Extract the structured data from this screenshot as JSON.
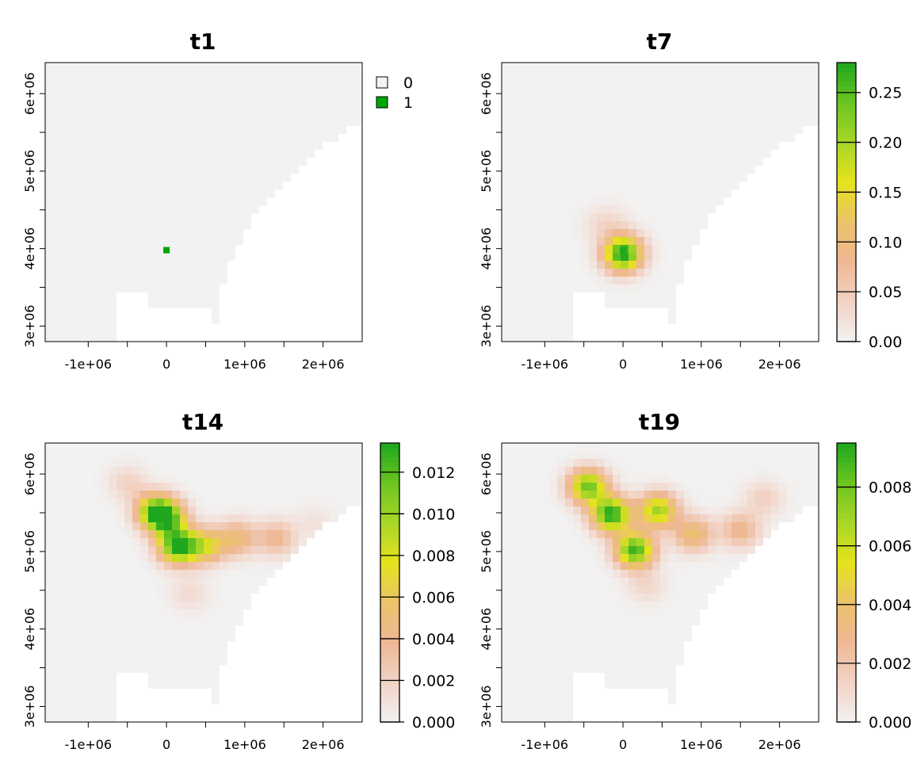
{
  "palette": {
    "background_cell": "#f2f2f2",
    "frame": "#000000",
    "ramp": [
      "#f2f2f2",
      "#f2d3c6",
      "#efb894",
      "#ebc26c",
      "#e6e31c",
      "#a8d627",
      "#6cc521",
      "#1ea71e"
    ],
    "zero_color": "#f2f2f2",
    "one_color": "#00a600"
  },
  "chart_data": [
    {
      "id": "t1",
      "type": "heatmap",
      "title": "t1",
      "xlim": [
        -1550000,
        2500000
      ],
      "ylim": [
        2800000,
        6400000
      ],
      "x_ticks": [
        {
          "value": -1000000,
          "label": "-1e+06"
        },
        {
          "value": 0,
          "label": "0"
        },
        {
          "value": 1000000,
          "label": "1e+06"
        },
        {
          "value": 2000000,
          "label": "2e+06"
        }
      ],
      "y_ticks": [
        {
          "value": 3000000,
          "label": "3e+06"
        },
        {
          "value": 4000000,
          "label": "4e+06"
        },
        {
          "value": 5000000,
          "label": "5e+06"
        },
        {
          "value": 6000000,
          "label": "6e+06"
        }
      ],
      "legend": {
        "kind": "categorical",
        "entries": [
          {
            "label": "0",
            "color": "#f2f2f2"
          },
          {
            "label": "1",
            "color": "#00a600"
          }
        ]
      },
      "max_value": 1,
      "hotspots": [
        {
          "x": 0,
          "y": 3980000,
          "value": 1
        }
      ]
    },
    {
      "id": "t7",
      "type": "heatmap",
      "title": "t7",
      "xlim": [
        -1550000,
        2500000
      ],
      "ylim": [
        2800000,
        6400000
      ],
      "x_ticks": [
        {
          "value": -1000000,
          "label": "-1e+06"
        },
        {
          "value": 0,
          "label": "0"
        },
        {
          "value": 1000000,
          "label": "1e+06"
        },
        {
          "value": 2000000,
          "label": "2e+06"
        }
      ],
      "y_ticks": [
        {
          "value": 3000000,
          "label": "3e+06"
        },
        {
          "value": 4000000,
          "label": "4e+06"
        },
        {
          "value": 5000000,
          "label": "5e+06"
        },
        {
          "value": 6000000,
          "label": "6e+06"
        }
      ],
      "legend": {
        "kind": "continuous",
        "min": 0,
        "max": 0.28,
        "ticks": [
          {
            "value": 0,
            "label": "0.00"
          },
          {
            "value": 0.05,
            "label": "0.05"
          },
          {
            "value": 0.1,
            "label": "0.10"
          },
          {
            "value": 0.15,
            "label": "0.15"
          },
          {
            "value": 0.2,
            "label": "0.20"
          },
          {
            "value": 0.25,
            "label": "0.25"
          }
        ]
      },
      "max_value": 0.28,
      "hotspots": [
        {
          "x": 0,
          "y": 3980000,
          "value": 0.28
        },
        {
          "x": -200000,
          "y": 4400000,
          "value": 0.025
        },
        {
          "x": 0,
          "y": 4200000,
          "value": 0.018
        },
        {
          "x": -350000,
          "y": 4300000,
          "value": 0.012
        }
      ]
    },
    {
      "id": "t14",
      "type": "heatmap",
      "title": "t14",
      "xlim": [
        -1550000,
        2500000
      ],
      "ylim": [
        2800000,
        6400000
      ],
      "x_ticks": [
        {
          "value": -1000000,
          "label": "-1e+06"
        },
        {
          "value": 0,
          "label": "0"
        },
        {
          "value": 1000000,
          "label": "1e+06"
        },
        {
          "value": 2000000,
          "label": "2e+06"
        }
      ],
      "y_ticks": [
        {
          "value": 3000000,
          "label": "3e+06"
        },
        {
          "value": 4000000,
          "label": "4e+06"
        },
        {
          "value": 5000000,
          "label": "5e+06"
        },
        {
          "value": 6000000,
          "label": "6e+06"
        }
      ],
      "legend": {
        "kind": "continuous",
        "min": 0,
        "max": 0.0134,
        "ticks": [
          {
            "value": 0,
            "label": "0.000"
          },
          {
            "value": 0.002,
            "label": "0.002"
          },
          {
            "value": 0.004,
            "label": "0.004"
          },
          {
            "value": 0.006,
            "label": "0.006"
          },
          {
            "value": 0.008,
            "label": "0.008"
          },
          {
            "value": 0.01,
            "label": "0.010"
          },
          {
            "value": 0.012,
            "label": "0.012"
          }
        ]
      },
      "max_value": 0.0134,
      "hotspots": [
        {
          "x": 150000,
          "y": 5100000,
          "value": 0.0134
        },
        {
          "x": 0,
          "y": 5450000,
          "value": 0.011
        },
        {
          "x": -150000,
          "y": 5550000,
          "value": 0.009
        },
        {
          "x": 500000,
          "y": 5100000,
          "value": 0.007
        },
        {
          "x": 900000,
          "y": 5200000,
          "value": 0.005
        },
        {
          "x": 1400000,
          "y": 5200000,
          "value": 0.004
        },
        {
          "x": -500000,
          "y": 5900000,
          "value": 0.002
        },
        {
          "x": 300000,
          "y": 4500000,
          "value": 0.0015
        },
        {
          "x": 1900000,
          "y": 5400000,
          "value": 0.001
        }
      ]
    },
    {
      "id": "t19",
      "type": "heatmap",
      "title": "t19",
      "xlim": [
        -1550000,
        2500000
      ],
      "ylim": [
        2800000,
        6400000
      ],
      "x_ticks": [
        {
          "value": -1000000,
          "label": "-1e+06"
        },
        {
          "value": 0,
          "label": "0"
        },
        {
          "value": 1000000,
          "label": "1e+06"
        },
        {
          "value": 2000000,
          "label": "2e+06"
        }
      ],
      "y_ticks": [
        {
          "value": 3000000,
          "label": "3e+06"
        },
        {
          "value": 4000000,
          "label": "4e+06"
        },
        {
          "value": 5000000,
          "label": "5e+06"
        },
        {
          "value": 6000000,
          "label": "6e+06"
        }
      ],
      "legend": {
        "kind": "continuous",
        "min": 0,
        "max": 0.0095,
        "ticks": [
          {
            "value": 0,
            "label": "0.000"
          },
          {
            "value": 0.002,
            "label": "0.002"
          },
          {
            "value": 0.004,
            "label": "0.004"
          },
          {
            "value": 0.006,
            "label": "0.006"
          },
          {
            "value": 0.008,
            "label": "0.008"
          }
        ]
      },
      "max_value": 0.0095,
      "hotspots": [
        {
          "x": -150000,
          "y": 5500000,
          "value": 0.0095
        },
        {
          "x": 150000,
          "y": 5050000,
          "value": 0.009
        },
        {
          "x": -450000,
          "y": 5850000,
          "value": 0.008
        },
        {
          "x": 450000,
          "y": 5550000,
          "value": 0.007
        },
        {
          "x": 900000,
          "y": 5250000,
          "value": 0.004
        },
        {
          "x": 1500000,
          "y": 5300000,
          "value": 0.003
        },
        {
          "x": 1800000,
          "y": 5700000,
          "value": 0.0015
        },
        {
          "x": 300000,
          "y": 4600000,
          "value": 0.0012
        }
      ]
    }
  ]
}
